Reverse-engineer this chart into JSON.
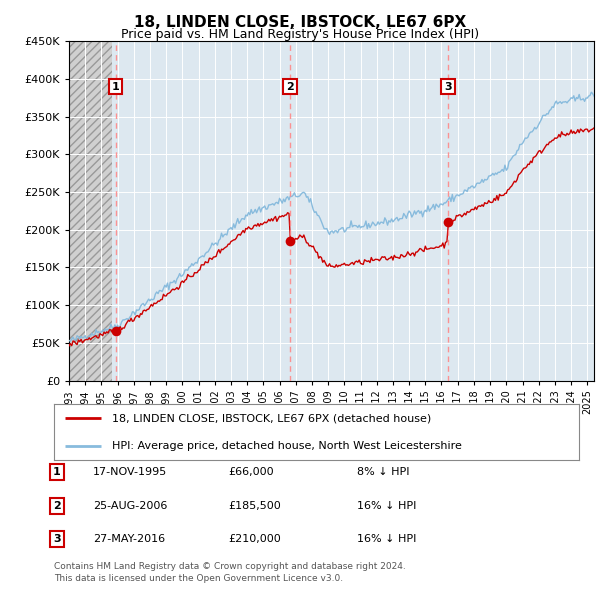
{
  "title": "18, LINDEN CLOSE, IBSTOCK, LE67 6PX",
  "subtitle": "Price paid vs. HM Land Registry's House Price Index (HPI)",
  "ylim": [
    0,
    450000
  ],
  "ytick_vals": [
    0,
    50000,
    100000,
    150000,
    200000,
    250000,
    300000,
    350000,
    400000,
    450000
  ],
  "sale_prices": [
    66000,
    185500,
    210000
  ],
  "sale_labels": [
    "1",
    "2",
    "3"
  ],
  "sale_color": "#cc0000",
  "hpi_color": "#88bbdd",
  "red_line_color": "#cc0000",
  "vline_color": "#ff8888",
  "legend_red_label": "18, LINDEN CLOSE, IBSTOCK, LE67 6PX (detached house)",
  "legend_blue_label": "HPI: Average price, detached house, North West Leicestershire",
  "table_rows": [
    [
      "1",
      "17-NOV-1995",
      "£66,000",
      "8% ↓ HPI"
    ],
    [
      "2",
      "25-AUG-2006",
      "£185,500",
      "16% ↓ HPI"
    ],
    [
      "3",
      "27-MAY-2016",
      "£210,000",
      "16% ↓ HPI"
    ]
  ],
  "footnote1": "Contains HM Land Registry data © Crown copyright and database right 2024.",
  "footnote2": "This data is licensed under the Open Government Licence v3.0.",
  "background_color": "#ffffff",
  "plot_bg_color": "#dde8f0",
  "hatch_bg_color": "#d0d0d0"
}
